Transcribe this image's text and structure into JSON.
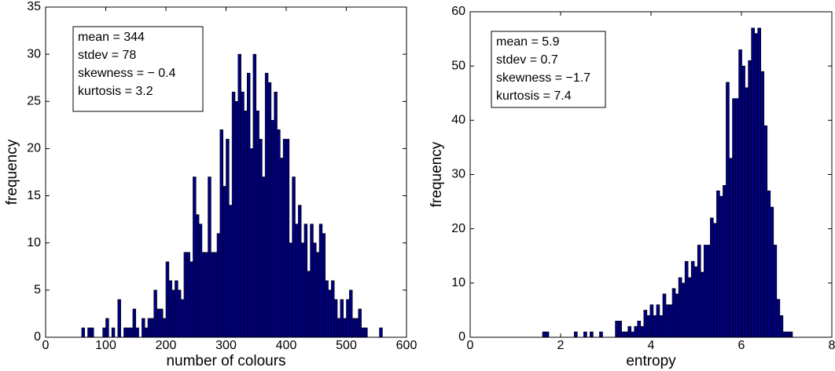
{
  "chart_data": [
    {
      "type": "histogram",
      "xlabel": "number of colours",
      "ylabel": "frequency",
      "annotation": [
        "mean = 344",
        "stdev = 78",
        "skewness = − 0.4",
        "kurtosis = 3.2"
      ],
      "color": "#00007f",
      "bins": [
        60,
        65,
        70,
        75,
        80,
        85,
        90,
        95,
        100,
        105,
        110,
        115,
        120,
        125,
        130,
        135,
        140,
        145,
        150,
        155,
        160,
        165,
        170,
        175,
        180,
        185,
        190,
        195,
        200,
        205,
        210,
        215,
        220,
        225,
        230,
        235,
        240,
        245,
        250,
        255,
        260,
        265,
        270,
        275,
        280,
        285,
        290,
        295,
        300,
        305,
        310,
        315,
        320,
        325,
        330,
        335,
        340,
        345,
        350,
        355,
        360,
        365,
        370,
        375,
        380,
        385,
        390,
        395,
        400,
        405,
        410,
        415,
        420,
        425,
        430,
        435,
        440,
        445,
        450,
        455,
        460,
        465,
        470,
        475,
        480,
        485,
        490,
        495,
        500,
        505,
        510,
        515,
        520,
        525,
        530,
        535,
        540,
        545,
        550,
        555,
        560
      ],
      "counts": [
        1,
        0,
        1,
        1,
        0,
        0,
        0,
        1,
        2,
        0,
        1,
        0,
        4,
        0,
        1,
        1,
        1,
        3,
        1,
        0,
        2,
        1,
        2,
        2,
        5,
        3,
        3,
        2,
        8,
        6,
        5,
        6,
        5,
        4,
        9,
        9,
        8,
        17,
        13,
        12,
        9,
        9,
        17,
        9,
        9,
        11,
        22,
        16,
        21,
        14,
        26,
        25,
        30,
        26,
        24,
        28,
        20,
        30,
        24,
        21,
        17,
        28,
        27,
        23,
        26,
        22,
        19,
        21,
        21,
        10,
        17,
        12,
        14,
        10,
        12,
        7,
        12,
        10,
        9,
        12,
        11,
        6,
        5,
        6,
        4,
        2,
        4,
        2,
        4,
        5,
        2,
        2,
        3,
        1,
        1,
        0,
        0,
        0,
        0,
        1
      ],
      "xlim": [
        0,
        600
      ],
      "xticks": [
        0,
        100,
        200,
        300,
        400,
        500,
        600
      ],
      "ylim": [
        0,
        35
      ],
      "yticks": [
        0,
        5,
        10,
        15,
        20,
        25,
        30,
        35
      ]
    },
    {
      "type": "histogram",
      "xlabel": "entropy",
      "ylabel": "frequency",
      "annotation": [
        "mean = 5.9",
        "stdev = 0.7",
        "skewness = −1.7",
        "kurtosis = 7.4"
      ],
      "color": "#00007f",
      "bins": [
        1.6,
        1.67,
        1.74,
        1.81,
        1.88,
        1.95,
        2.02,
        2.09,
        2.16,
        2.23,
        2.3,
        2.37,
        2.44,
        2.51,
        2.58,
        2.65,
        2.72,
        2.79,
        2.86,
        2.93,
        3.0,
        3.07,
        3.14,
        3.21,
        3.28,
        3.35,
        3.42,
        3.49,
        3.56,
        3.63,
        3.7,
        3.77,
        3.84,
        3.91,
        3.98,
        4.05,
        4.12,
        4.19,
        4.26,
        4.33,
        4.4,
        4.47,
        4.54,
        4.61,
        4.68,
        4.75,
        4.82,
        4.89,
        4.96,
        5.03,
        5.1,
        5.17,
        5.24,
        5.31,
        5.38,
        5.45,
        5.52,
        5.59,
        5.66,
        5.73,
        5.8,
        5.87,
        5.94,
        6.01,
        6.08,
        6.15,
        6.22,
        6.29,
        6.36,
        6.43,
        6.5,
        6.57,
        6.64,
        6.71,
        6.78,
        6.85,
        6.92,
        6.99,
        7.06,
        7.13,
        7.2
      ],
      "counts": [
        1,
        1,
        0,
        0,
        0,
        0,
        0,
        0,
        0,
        0,
        1,
        0,
        0,
        1,
        0,
        1,
        0,
        0,
        1,
        0,
        0,
        0,
        0,
        3,
        3,
        1,
        1,
        2,
        1,
        2,
        3,
        2,
        5,
        4,
        6,
        4,
        6,
        4,
        8,
        6,
        6,
        9,
        8,
        11,
        10,
        14,
        11,
        14,
        13,
        17,
        12,
        17,
        17,
        22,
        21,
        27,
        26,
        28,
        47,
        33,
        44,
        44,
        53,
        50,
        46,
        51,
        57,
        56,
        57,
        49,
        39,
        27,
        24,
        17,
        7,
        4,
        1,
        1,
        1,
        0
      ],
      "xlim": [
        0,
        8
      ],
      "xticks": [
        0,
        2,
        4,
        6,
        8
      ],
      "ylim": [
        0,
        60
      ],
      "yticks": [
        0,
        10,
        20,
        30,
        40,
        50,
        60
      ]
    }
  ]
}
